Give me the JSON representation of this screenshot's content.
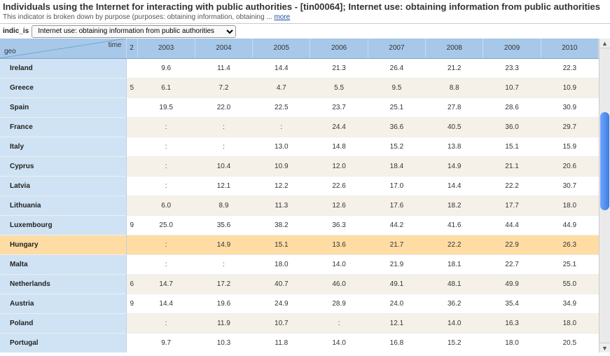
{
  "title": "Individuals using the Internet for interacting with public authorities - [tin00064]; Internet use: obtaining information from public authorities",
  "subtitle_prefix": "This indicator is broken down by purpose (purposes: obtaining information, obtaining ... ",
  "subtitle_link": "more",
  "filter": {
    "label": "indic_is",
    "selected": "Internet use: obtaining information from public authorities"
  },
  "table": {
    "corner": {
      "row_dim": "geo",
      "col_dim": "time"
    },
    "cut_col_label": "2",
    "columns": [
      "2003",
      "2004",
      "2005",
      "2006",
      "2007",
      "2008",
      "2009",
      "2010"
    ],
    "rows": [
      {
        "label": "Ireland",
        "cut": "",
        "v": [
          "9.6",
          "11.4",
          "14.4",
          "21.3",
          "26.4",
          "21.2",
          "23.3",
          "22.3"
        ],
        "hl": false
      },
      {
        "label": "Greece",
        "cut": "5",
        "v": [
          "6.1",
          "7.2",
          "4.7",
          "5.5",
          "9.5",
          "8.8",
          "10.7",
          "10.9"
        ],
        "hl": false
      },
      {
        "label": "Spain",
        "cut": "",
        "v": [
          "19.5",
          "22.0",
          "22.5",
          "23.7",
          "25.1",
          "27.8",
          "28.6",
          "30.9"
        ],
        "hl": false
      },
      {
        "label": "France",
        "cut": "",
        "v": [
          ":",
          ":",
          ":",
          "24.4",
          "36.6",
          "40.5",
          "36.0",
          "29.7"
        ],
        "hl": false
      },
      {
        "label": "Italy",
        "cut": "",
        "v": [
          ":",
          ":",
          "13.0",
          "14.8",
          "15.2",
          "13.8",
          "15.1",
          "15.9"
        ],
        "hl": false
      },
      {
        "label": "Cyprus",
        "cut": "",
        "v": [
          ":",
          "10.4",
          "10.9",
          "12.0",
          "18.4",
          "14.9",
          "21.1",
          "20.6"
        ],
        "hl": false
      },
      {
        "label": "Latvia",
        "cut": "",
        "v": [
          ":",
          "12.1",
          "12.2",
          "22.6",
          "17.0",
          "14.4",
          "22.2",
          "30.7"
        ],
        "hl": false
      },
      {
        "label": "Lithuania",
        "cut": "",
        "v": [
          "6.0",
          "8.9",
          "11.3",
          "12.6",
          "17.6",
          "18.2",
          "17.7",
          "18.0"
        ],
        "hl": false
      },
      {
        "label": "Luxembourg",
        "cut": "9",
        "v": [
          "25.0",
          "35.6",
          "38.2",
          "36.3",
          "44.2",
          "41.6",
          "44.4",
          "44.9"
        ],
        "hl": false
      },
      {
        "label": "Hungary",
        "cut": "",
        "v": [
          ":",
          "14.9",
          "15.1",
          "13.6",
          "21.7",
          "22.2",
          "22.9",
          "26.3"
        ],
        "hl": true
      },
      {
        "label": "Malta",
        "cut": "",
        "v": [
          ":",
          ":",
          "18.0",
          "14.0",
          "21.9",
          "18.1",
          "22.7",
          "25.1"
        ],
        "hl": false
      },
      {
        "label": "Netherlands",
        "cut": "6",
        "v": [
          "14.7",
          "17.2",
          "40.7",
          "46.0",
          "49.1",
          "48.1",
          "49.9",
          "55.0"
        ],
        "hl": false
      },
      {
        "label": "Austria",
        "cut": "9",
        "v": [
          "14.4",
          "19.6",
          "24.9",
          "28.9",
          "24.0",
          "36.2",
          "35.4",
          "34.9"
        ],
        "hl": false
      },
      {
        "label": "Poland",
        "cut": "",
        "v": [
          ":",
          "11.9",
          "10.7",
          ":",
          "12.1",
          "14.0",
          "16.3",
          "18.0"
        ],
        "hl": false
      },
      {
        "label": "Portugal",
        "cut": "",
        "v": [
          "9.7",
          "10.3",
          "11.8",
          "14.0",
          "16.8",
          "15.2",
          "18.0",
          "20.5"
        ],
        "hl": false
      }
    ]
  },
  "colors": {
    "header_bg": "#a7c8e8",
    "rowhead_bg": "#cfe3f4",
    "odd_bg": "#f6f1e8",
    "highlight_bg": "#ffdca3",
    "scroll_thumb_a": "#6ea6ff",
    "scroll_thumb_b": "#3d7de0"
  }
}
